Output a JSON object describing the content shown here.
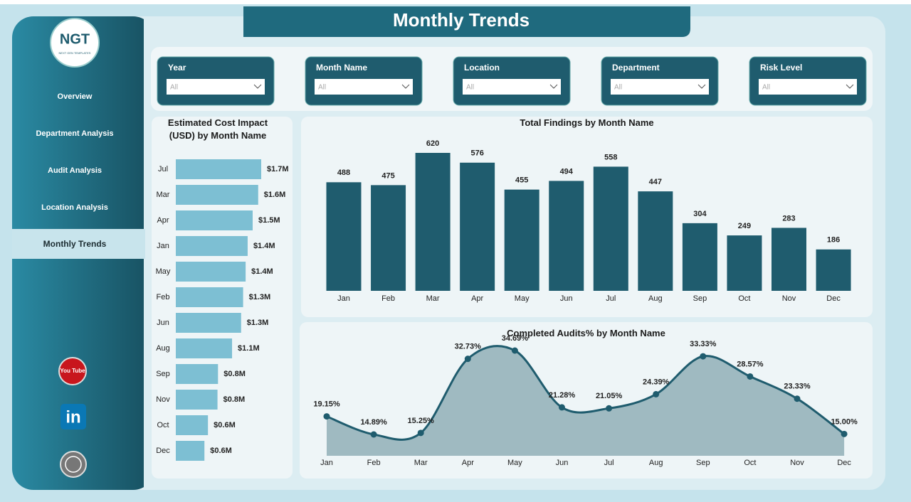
{
  "header": {
    "title": "Monthly Trends"
  },
  "logo": {
    "text": "NGT",
    "subtext": "NEXT GEN TEMPLATES"
  },
  "nav": [
    "Overview",
    "Department Analysis",
    "Audit Analysis",
    "Location Analysis",
    "Monthly Trends"
  ],
  "filters": [
    {
      "label": "Year",
      "value": "All"
    },
    {
      "label": "Month Name",
      "value": "All"
    },
    {
      "label": "Location",
      "value": "All"
    },
    {
      "label": "Department",
      "value": "All"
    },
    {
      "label": "Risk Level",
      "value": "All"
    }
  ],
  "social": [
    "You Tube",
    "in"
  ],
  "chart_data": [
    {
      "type": "hbar",
      "title": "Estimated Cost Impact (USD) by Month Name",
      "color": "#7dbfd3",
      "categories": [
        "Jul",
        "Mar",
        "Apr",
        "Jan",
        "May",
        "Feb",
        "Jun",
        "Aug",
        "Sep",
        "Nov",
        "Oct",
        "Dec"
      ],
      "values": [
        1700000,
        1640000,
        1530000,
        1430000,
        1390000,
        1340000,
        1300000,
        1120000,
        840000,
        830000,
        640000,
        570000
      ],
      "value_labels": [
        "$1.7M",
        "$1.6M",
        "$1.5M",
        "$1.4M",
        "$1.4M",
        "$1.3M",
        "$1.3M",
        "$1.1M",
        "$0.8M",
        "$0.8M",
        "$0.6M",
        "$0.6M"
      ]
    },
    {
      "type": "bar",
      "title": "Total Findings by Month Name",
      "color": "#1f5c6e",
      "categories": [
        "Jan",
        "Feb",
        "Mar",
        "Apr",
        "May",
        "Jun",
        "Jul",
        "Aug",
        "Sep",
        "Oct",
        "Nov",
        "Dec"
      ],
      "values": [
        488,
        475,
        620,
        576,
        455,
        494,
        558,
        447,
        304,
        249,
        283,
        186
      ]
    },
    {
      "type": "area",
      "title": "Completed Audits% by Month Name",
      "color": "#1f5c6e",
      "fill": "#9fbac1",
      "categories": [
        "Jan",
        "Feb",
        "Mar",
        "Apr",
        "May",
        "Jun",
        "Jul",
        "Aug",
        "Sep",
        "Oct",
        "Nov",
        "Dec"
      ],
      "values": [
        19.15,
        14.89,
        15.25,
        32.73,
        34.69,
        21.28,
        21.05,
        24.39,
        33.33,
        28.57,
        23.33,
        15.0
      ],
      "value_labels": [
        "19.15%",
        "14.89%",
        "15.25%",
        "32.73%",
        "34.69%",
        "21.28%",
        "21.05%",
        "24.39%",
        "33.33%",
        "28.57%",
        "23.33%",
        "15.00%"
      ]
    }
  ]
}
